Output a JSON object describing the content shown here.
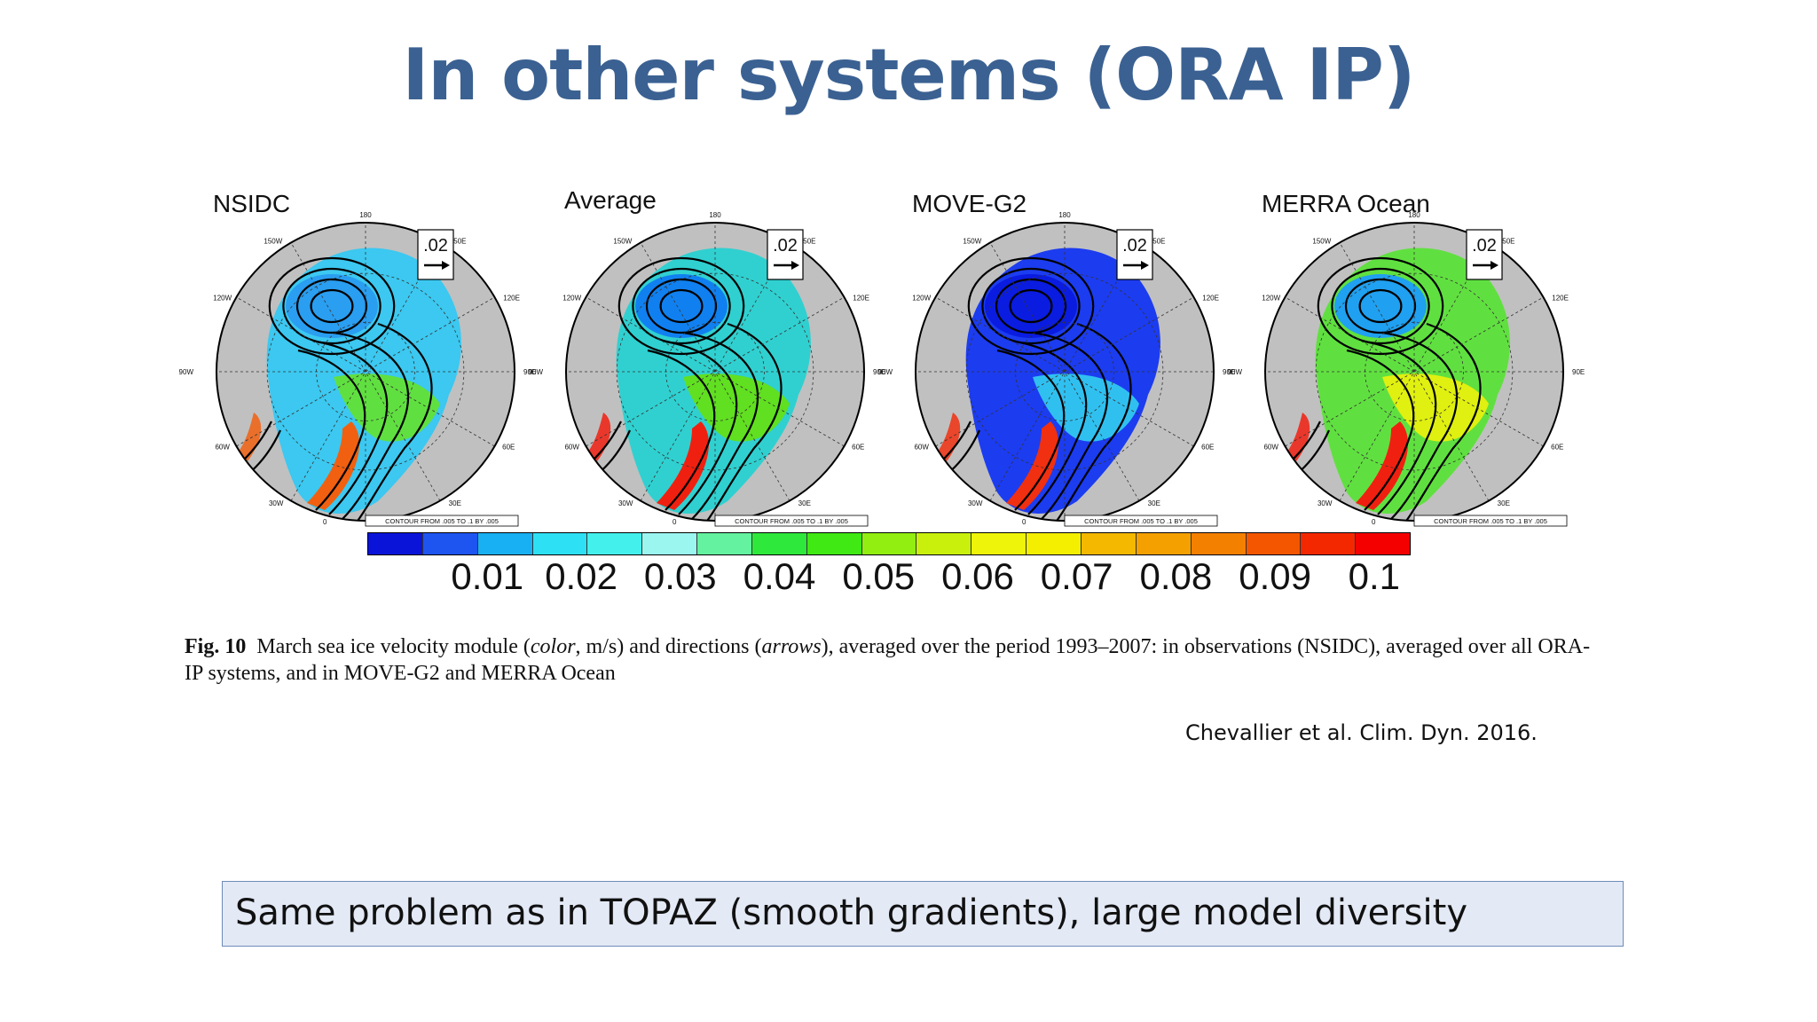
{
  "slide": {
    "title": "In other systems (ORA IP)",
    "citation": "Chevallier et al. Clim. Dyn. 2016.",
    "note": "Same problem as in TOPAZ (smooth gradients), large model diversity"
  },
  "figure": {
    "panels": [
      {
        "label": "NSIDC"
      },
      {
        "label": "Average"
      },
      {
        "label": "MOVE-G2"
      },
      {
        "label": "MERRA Ocean"
      }
    ],
    "lon_labels": {
      "top": "180",
      "bottom": "0",
      "left": "90W",
      "right": "90E",
      "upper_left_1": "150W",
      "upper_left_2": "120W",
      "upper_right_1": "150E",
      "upper_right_2": "120E",
      "lower_left_1": "60W",
      "lower_left_2": "30W",
      "lower_right_1": "60E",
      "lower_right_2": "30E"
    },
    "reference_arrow_label": ".02",
    "contour_note": "CONTOUR FROM .005 TO .1 BY .005",
    "colorbar": {
      "colors": [
        "#0a14d8",
        "#1e55f0",
        "#18b0f2",
        "#2ee0f4",
        "#44f0ec",
        "#9cf6f0",
        "#64f2a0",
        "#2ee83c",
        "#40e814",
        "#92ee10",
        "#c8f00c",
        "#eef40a",
        "#f4ee00",
        "#f4b800",
        "#f4a000",
        "#f48000",
        "#f45600",
        "#f42800",
        "#f40000"
      ],
      "tick_labels": [
        "0.01",
        "0.02",
        "0.03",
        "0.04",
        "0.05",
        "0.06",
        "0.07",
        "0.08",
        "0.09",
        "0.1"
      ]
    },
    "caption": {
      "fig_label": "Fig. 10",
      "text_1": "March sea ice velocity module (",
      "em_1": "color",
      "text_2": ", m/s) and directions (",
      "em_2": "arrows",
      "text_3": "), averaged over the period 1993–2007: in observations (NSIDC), averaged over all ORA-IP systems, and in MOVE-G2 and MERRA Ocean"
    }
  }
}
